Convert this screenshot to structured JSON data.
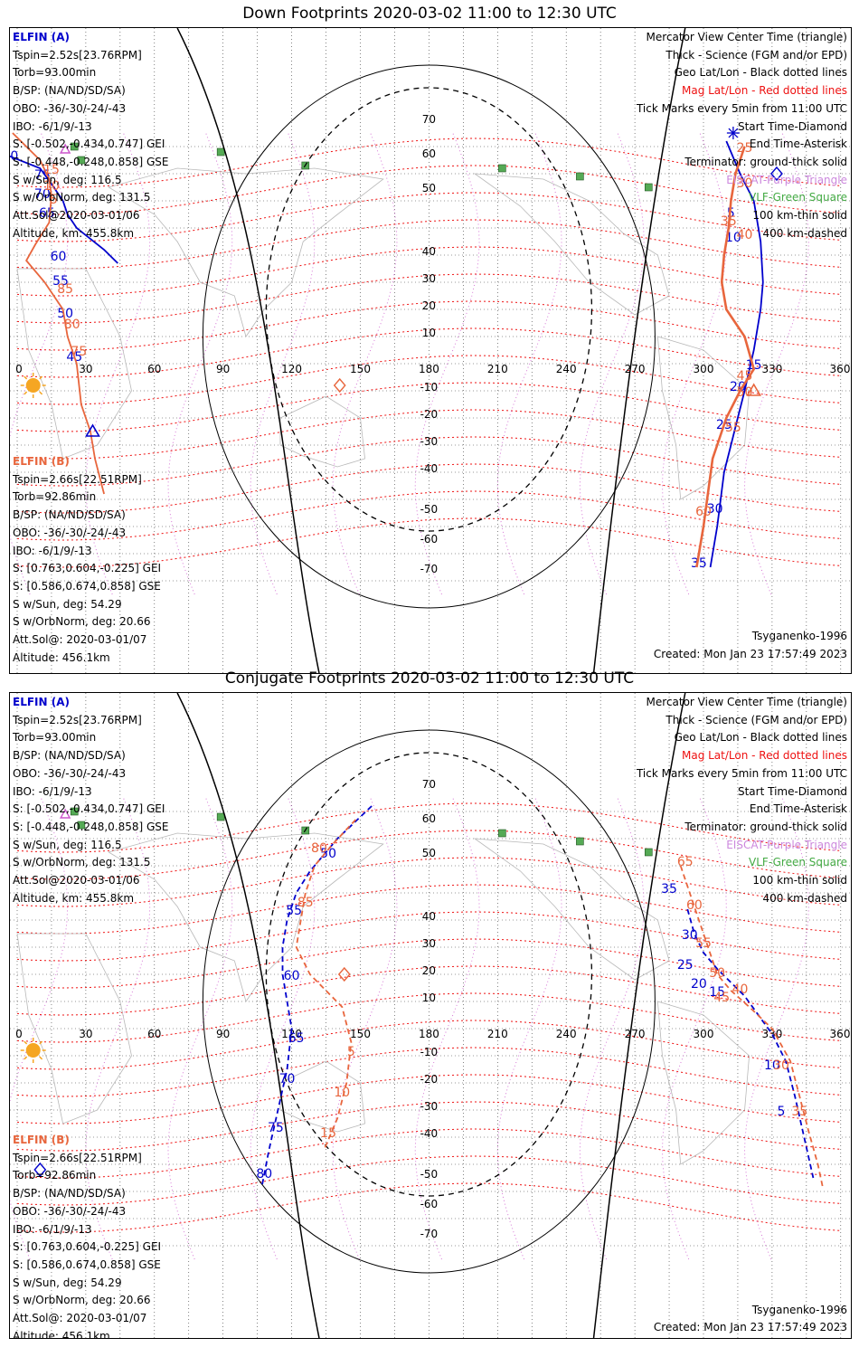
{
  "colors": {
    "elfin_a": "#0000cc",
    "elfin_b": "#e8663d",
    "mag_grid": "#ee1111",
    "geo_grid": "#000000",
    "purple": "#cc55cc",
    "green": "#449944",
    "sun": "#f5a623"
  },
  "x_ticks": [
    "0",
    "30",
    "60",
    "90",
    "120",
    "150",
    "180",
    "210",
    "240",
    "270",
    "300",
    "330",
    "360"
  ],
  "lat_labels": [
    "70",
    "60",
    "50",
    "40",
    "30",
    "20",
    "10",
    "-10",
    "-20",
    "-30",
    "-40",
    "-50",
    "-60",
    "-70"
  ],
  "legend": {
    "center_time": "Mercator View Center Time (triangle)",
    "thick": "Thick - Science (FGM and/or EPD)",
    "geo": "Geo Lat/Lon - Black dotted lines",
    "mag": "Mag Lat/Lon - Red dotted lines",
    "ticks": "Tick Marks every 5min from 11:00 UTC",
    "start": "Start Time-Diamond",
    "end": "End Time-Asterisk",
    "terminator": "Terminator: ground-thick solid",
    "eiscat": "EISCAT-Purple Triangle",
    "vlf": "VLF-Green Square",
    "thin": "100 km-thin solid",
    "dashed": "400 km-dashed"
  },
  "elfin_a": {
    "name": "ELFIN (A)",
    "tspin": "Tspin=2.52s[23.76RPM]",
    "torb": "Torb=93.00min",
    "bsp": "B/SP: (NA/ND/SD/SA)",
    "obo": "OBO: -36/-30/-24/-43",
    "ibo": "IBO: -6/1/9/-13",
    "s_gei": "S: [-0.502,-0.434,0.747] GEI",
    "s_gse": "S: [-0.448,-0.248,0.858] GSE",
    "sun": "S w/Sun, deg: 116.5",
    "orbnorm": "S w/OrbNorm, deg: 131.5",
    "attsol": "Att.Sol@2020-03-01/06",
    "altitude": "Altitude, km: 455.8km"
  },
  "elfin_b": {
    "name": "ELFIN (B)",
    "tspin": "Tspin=2.66s[22.51RPM]",
    "torb": "Torb=92.86min",
    "bsp": "B/SP: (NA/ND/SD/SA)",
    "obo": "OBO: -36/-30/-24/-43",
    "ibo": "IBO: -6/1/9/-13",
    "s_gei": "S: [0.763,0.604,-0.225] GEI",
    "s_gse": "S: [0.586,0.674,0.858] GSE",
    "sun": "S w/Sun, deg: 54.29",
    "orbnorm": "S w/OrbNorm, deg: 20.66",
    "attsol": "Att.Sol@: 2020-03-01/07",
    "altitude": "Altitude: 456.1km"
  },
  "model": "Tsyganenko-1996",
  "created": "Created: Mon Jan 23 17:57:49 2023",
  "panels": [
    {
      "title": "Down Footprints 2020-03-02 11:00 to 12:30 UTC",
      "dashed_tracks": false,
      "track_a1": {
        "points": [
          [
            -8,
            78
          ],
          [
            10,
            72
          ],
          [
            16,
            65
          ],
          [
            20,
            60
          ],
          [
            22,
            55
          ],
          [
            26,
            50
          ],
          [
            38,
            42
          ],
          [
            44,
            37
          ]
        ],
        "labels": [
          [
            "80",
            -3,
            75
          ],
          [
            "75",
            11,
            68
          ],
          [
            "70",
            11,
            61
          ],
          [
            "65",
            13,
            54
          ],
          [
            "60",
            18,
            38
          ],
          [
            "55",
            19,
            29
          ],
          [
            "50",
            21,
            17
          ],
          [
            "45",
            25,
            1
          ]
        ]
      },
      "track_b1": {
        "points": [
          [
            -2,
            85
          ],
          [
            10,
            75
          ],
          [
            14,
            68
          ],
          [
            15,
            62
          ],
          [
            14,
            52
          ],
          [
            8,
            44
          ],
          [
            4,
            38
          ],
          [
            12,
            30
          ],
          [
            20,
            20
          ],
          [
            22,
            10
          ],
          [
            26,
            0
          ],
          [
            28,
            -15
          ],
          [
            32,
            -25
          ],
          [
            34,
            -35
          ],
          [
            38,
            -48
          ]
        ],
        "labels": [
          [
            "15",
            15,
            70
          ],
          [
            "10",
            15,
            64
          ],
          [
            "5",
            16,
            59
          ],
          [
            "85",
            21,
            26
          ],
          [
            "80",
            24,
            13
          ],
          [
            "75",
            27,
            3
          ]
        ]
      },
      "track_a2": {
        "points": [
          [
            310,
            82
          ],
          [
            316,
            70
          ],
          [
            322,
            60
          ],
          [
            325,
            45
          ],
          [
            326,
            30
          ],
          [
            325,
            20
          ],
          [
            322,
            5
          ],
          [
            318,
            -10
          ],
          [
            315,
            -20
          ],
          [
            312,
            -30
          ],
          [
            309,
            -40
          ],
          [
            306,
            -60
          ],
          [
            303,
            -75
          ]
        ],
        "labels": [
          [
            "5",
            312,
            54
          ],
          [
            "10",
            313,
            45
          ],
          [
            "15",
            322,
            -2
          ],
          [
            "20",
            315,
            -10
          ],
          [
            "25",
            309,
            -24
          ],
          [
            "30",
            305,
            -55
          ],
          [
            "35",
            298,
            -75
          ]
        ]
      },
      "track_b2": {
        "points": [
          [
            318,
            80
          ],
          [
            314,
            70
          ],
          [
            312,
            60
          ],
          [
            311,
            50
          ],
          [
            309,
            40
          ],
          [
            308,
            30
          ],
          [
            310,
            20
          ],
          [
            318,
            10
          ],
          [
            322,
            -2
          ],
          [
            316,
            -10
          ],
          [
            310,
            -20
          ],
          [
            304,
            -35
          ],
          [
            300,
            -60
          ],
          [
            297,
            -75
          ]
        ],
        "labels": [
          [
            "25",
            318,
            78
          ],
          [
            "30",
            318,
            65
          ],
          [
            "35",
            311,
            51
          ],
          [
            "40",
            318,
            46
          ],
          [
            "45",
            318,
            -6
          ],
          [
            "50",
            318,
            -12
          ],
          [
            "55",
            313,
            -25
          ],
          [
            "60",
            300,
            -56
          ]
        ]
      },
      "markers": [
        {
          "type": "diamond",
          "color": "b",
          "x": 141,
          "y": -8
        },
        {
          "type": "triangle",
          "color": "a",
          "x": 33,
          "y": -25
        },
        {
          "type": "triangle",
          "color": "b",
          "x": 322,
          "y": -10
        },
        {
          "type": "diamond",
          "color": "a",
          "x": 332,
          "y": 70
        },
        {
          "type": "asterisk",
          "color": "a",
          "x": 313,
          "y": 85
        }
      ]
    },
    {
      "title": "Conjugate Footprints 2020-03-02 11:00 to 12:30 UTC",
      "dashed_tracks": true,
      "track_a1": {
        "points": [
          [
            155,
            82
          ],
          [
            140,
            70
          ],
          [
            128,
            58
          ],
          [
            122,
            50
          ],
          [
            118,
            40
          ],
          [
            116,
            30
          ],
          [
            116,
            20
          ],
          [
            118,
            10
          ],
          [
            120,
            0
          ],
          [
            118,
            -15
          ],
          [
            114,
            -30
          ],
          [
            110,
            -45
          ],
          [
            107,
            -58
          ]
        ],
        "labels": [
          [
            "50",
            136,
            63
          ],
          [
            "55",
            121,
            42
          ],
          [
            "60",
            120,
            18
          ],
          [
            "65",
            122,
            -5
          ],
          [
            "70",
            118,
            -20
          ],
          [
            "75",
            113,
            -38
          ],
          [
            "80",
            108,
            -55
          ]
        ]
      },
      "track_b1": {
        "points": [
          [
            148,
            77
          ],
          [
            138,
            68
          ],
          [
            130,
            60
          ],
          [
            126,
            50
          ],
          [
            124,
            40
          ],
          [
            122,
            30
          ],
          [
            128,
            20
          ],
          [
            142,
            8
          ],
          [
            146,
            -5
          ],
          [
            144,
            -20
          ],
          [
            140,
            -33
          ],
          [
            134,
            -45
          ]
        ],
        "labels": [
          [
            "80",
            132,
            65
          ],
          [
            "85",
            126,
            45
          ],
          [
            "5",
            146,
            -10
          ],
          [
            "10",
            142,
            -25
          ],
          [
            "15",
            136,
            -40
          ]
        ]
      },
      "track_a2": {
        "points": [
          [
            293,
            44
          ],
          [
            296,
            35
          ],
          [
            300,
            28
          ],
          [
            306,
            22
          ],
          [
            312,
            17
          ],
          [
            318,
            12
          ],
          [
            324,
            5
          ],
          [
            330,
            -2
          ],
          [
            336,
            -12
          ],
          [
            340,
            -25
          ],
          [
            344,
            -40
          ],
          [
            348,
            -55
          ]
        ],
        "labels": [
          [
            "35",
            285,
            50
          ],
          [
            "30",
            294,
            33
          ],
          [
            "25",
            292,
            22
          ],
          [
            "20",
            298,
            15
          ],
          [
            "15",
            306,
            12
          ],
          [
            "10",
            330,
            -15
          ],
          [
            "5",
            334,
            -32
          ]
        ]
      },
      "track_b2": {
        "points": [
          [
            290,
            60
          ],
          [
            294,
            50
          ],
          [
            298,
            40
          ],
          [
            302,
            30
          ],
          [
            306,
            20
          ],
          [
            312,
            14
          ],
          [
            320,
            8
          ],
          [
            330,
            0
          ],
          [
            338,
            -12
          ],
          [
            342,
            -25
          ],
          [
            346,
            -38
          ],
          [
            350,
            -50
          ],
          [
            352,
            -58
          ]
        ],
        "labels": [
          [
            "65",
            292,
            60
          ],
          [
            "60",
            296,
            44
          ],
          [
            "55",
            300,
            30
          ],
          [
            "50",
            306,
            19
          ],
          [
            "45",
            308,
            10
          ],
          [
            "40",
            316,
            13
          ],
          [
            "35",
            342,
            -32
          ],
          [
            "30",
            334,
            -15
          ]
        ]
      },
      "markers": [
        {
          "type": "diamond",
          "color": "b",
          "x": 143,
          "y": 20
        },
        {
          "type": "diamond",
          "color": "a",
          "x": 10,
          "y": -52
        }
      ]
    }
  ]
}
